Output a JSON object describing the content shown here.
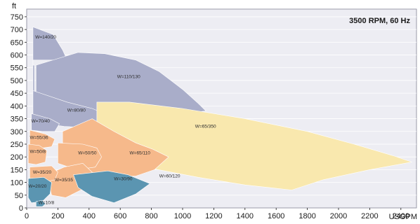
{
  "chart_data": {
    "type": "area",
    "title": "3500 RPM, 60 Hz",
    "ylabel": "ft",
    "xlabel": "USGPM",
    "xlim": [
      0,
      2500
    ],
    "ylim": [
      0,
      780
    ],
    "x_ticks": [
      0,
      200,
      400,
      600,
      800,
      1000,
      1200,
      1400,
      1600,
      1800,
      2000,
      2200,
      2400
    ],
    "y_ticks": [
      0,
      50,
      100,
      150,
      200,
      250,
      300,
      350,
      400,
      450,
      500,
      550,
      600,
      650,
      700,
      750
    ],
    "colors": {
      "grey": "#a9adc9",
      "orange": "#f6b98b",
      "yellow": "#f9e8ae",
      "blue": "#5b95b1",
      "panel": "#ededf3",
      "frame": "#9a9aaa",
      "curve": "#8a8ea8"
    },
    "regions": [
      {
        "label": "W=140/20",
        "color": "grey",
        "label_at": [
          55,
          665
        ],
        "outline": [
          [
            40,
            710
          ],
          [
            170,
            680
          ],
          [
            230,
            620
          ],
          [
            260,
            580
          ],
          [
            40,
            580
          ],
          [
            40,
            560
          ],
          [
            50,
            560
          ],
          [
            50,
            540
          ],
          [
            50,
            400
          ],
          [
            40,
            400
          ]
        ]
      },
      {
        "label": "W=110/130",
        "color": "grey",
        "label_at": [
          580,
          510
        ],
        "outline": [
          [
            60,
            560
          ],
          [
            330,
            610
          ],
          [
            500,
            605
          ],
          [
            700,
            580
          ],
          [
            850,
            535
          ],
          [
            1000,
            465
          ],
          [
            1100,
            410
          ],
          [
            1150,
            380
          ],
          [
            1000,
            370
          ],
          [
            820,
            370
          ],
          [
            620,
            370
          ],
          [
            440,
            330
          ],
          [
            320,
            340
          ],
          [
            140,
            360
          ],
          [
            60,
            400
          ]
        ]
      },
      {
        "label": "W=80/80",
        "color": "grey",
        "label_at": [
          260,
          378
        ],
        "outline": [
          [
            40,
            460
          ],
          [
            260,
            415
          ],
          [
            420,
            390
          ],
          [
            540,
            360
          ],
          [
            610,
            320
          ],
          [
            490,
            310
          ],
          [
            380,
            315
          ],
          [
            240,
            320
          ],
          [
            120,
            330
          ],
          [
            40,
            340
          ]
        ]
      },
      {
        "label": "W=70/40",
        "color": "grey",
        "label_at": [
          30,
          335
        ],
        "outline": [
          [
            30,
            370
          ],
          [
            150,
            350
          ],
          [
            210,
            330
          ],
          [
            180,
            300
          ],
          [
            100,
            300
          ],
          [
            30,
            305
          ]
        ]
      },
      {
        "label": "W=65/350",
        "color": "yellow",
        "label_at": [
          1080,
          315
        ],
        "outline": [
          [
            450,
            415
          ],
          [
            660,
            415
          ],
          [
            1000,
            390
          ],
          [
            1400,
            350
          ],
          [
            1800,
            300
          ],
          [
            2100,
            250
          ],
          [
            2350,
            205
          ],
          [
            2470,
            180
          ],
          [
            2200,
            150
          ],
          [
            1900,
            110
          ],
          [
            1700,
            70
          ],
          [
            1400,
            90
          ],
          [
            1100,
            120
          ],
          [
            800,
            155
          ],
          [
            560,
            200
          ],
          [
            450,
            240
          ]
        ]
      },
      {
        "label": "W=55/36",
        "color": "orange",
        "label_at": [
          20,
          270
        ],
        "outline": [
          [
            20,
            305
          ],
          [
            120,
            290
          ],
          [
            180,
            270
          ],
          [
            160,
            240
          ],
          [
            100,
            235
          ],
          [
            20,
            240
          ]
        ]
      },
      {
        "label": "W=65/110",
        "color": "orange",
        "label_at": [
          660,
          210
        ],
        "outline": [
          [
            230,
            300
          ],
          [
            420,
            350
          ],
          [
            560,
            300
          ],
          [
            700,
            255
          ],
          [
            810,
            230
          ],
          [
            910,
            200
          ],
          [
            820,
            150
          ],
          [
            700,
            125
          ],
          [
            500,
            120
          ],
          [
            320,
            150
          ],
          [
            230,
            220
          ]
        ]
      },
      {
        "label": "W=50/50",
        "color": "orange",
        "label_at": [
          330,
          210
        ],
        "outline": [
          [
            200,
            255
          ],
          [
            360,
            250
          ],
          [
            450,
            235
          ],
          [
            480,
            200
          ],
          [
            440,
            160
          ],
          [
            320,
            150
          ],
          [
            200,
            175
          ]
        ]
      },
      {
        "label": "W=50/8",
        "color": "orange",
        "label_at": [
          20,
          215
        ],
        "outline": [
          [
            10,
            250
          ],
          [
            80,
            245
          ],
          [
            130,
            225
          ],
          [
            120,
            180
          ],
          [
            60,
            170
          ],
          [
            10,
            175
          ]
        ]
      },
      {
        "label": "W=35/35",
        "color": "orange",
        "label_at": [
          180,
          105
        ],
        "outline": [
          [
            130,
            130
          ],
          [
            240,
            160
          ],
          [
            360,
            175
          ],
          [
            420,
            140
          ],
          [
            380,
            80
          ],
          [
            250,
            40
          ],
          [
            160,
            50
          ]
        ]
      },
      {
        "label": "W=35/20",
        "color": "orange",
        "label_at": [
          40,
          135
        ],
        "outline": [
          [
            20,
            160
          ],
          [
            160,
            165
          ],
          [
            200,
            140
          ],
          [
            180,
            110
          ],
          [
            100,
            100
          ],
          [
            20,
            110
          ]
        ]
      },
      {
        "label": "W=30/90",
        "color": "blue",
        "label_at": [
          560,
          108
        ],
        "outline": [
          [
            300,
            130
          ],
          [
            520,
            145
          ],
          [
            650,
            130
          ],
          [
            790,
            95
          ],
          [
            700,
            55
          ],
          [
            560,
            20
          ],
          [
            420,
            45
          ],
          [
            330,
            80
          ]
        ]
      },
      {
        "label": "W=20/20",
        "color": "blue",
        "label_at": [
          10,
          80
        ],
        "outline": [
          [
            10,
            115
          ],
          [
            110,
            120
          ],
          [
            160,
            100
          ],
          [
            150,
            55
          ],
          [
            100,
            25
          ],
          [
            30,
            20
          ],
          [
            10,
            40
          ]
        ]
      },
      {
        "label": "W=10/8",
        "color": "blue",
        "label_at": [
          75,
          15
        ],
        "outline": [
          [
            60,
            25
          ],
          [
            100,
            30
          ],
          [
            120,
            15
          ],
          [
            100,
            5
          ],
          [
            60,
            5
          ]
        ]
      }
    ],
    "standalone_labels": [
      {
        "label": "W=60/120",
        "label_at": [
          850,
          120
        ]
      }
    ]
  }
}
